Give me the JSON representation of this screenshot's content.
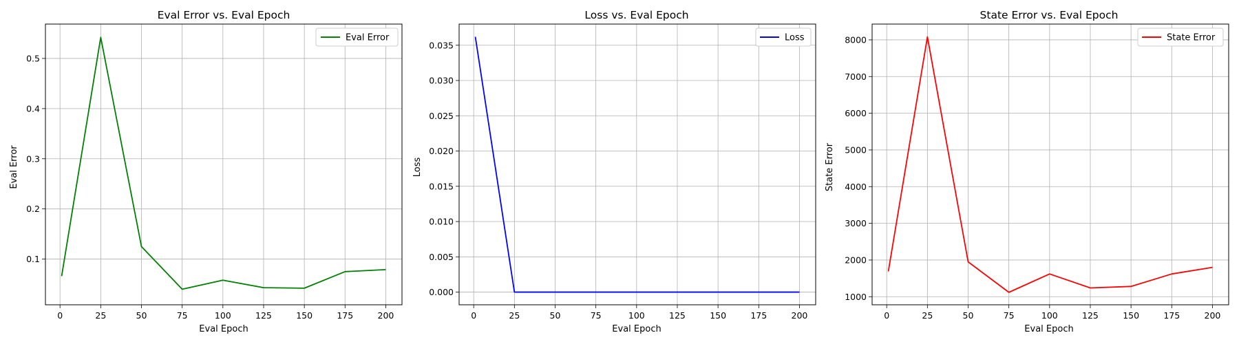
{
  "chart_data": [
    {
      "type": "line",
      "title": "Eval Error vs. Eval Epoch",
      "xlabel": "Eval Epoch",
      "ylabel": "Eval Error",
      "xlim": [
        -8.95,
        209.95
      ],
      "ylim": [
        0.0089,
        0.5685
      ],
      "xticks": [
        "0",
        "25",
        "50",
        "75",
        "100",
        "125",
        "150",
        "175",
        "200"
      ],
      "yticks": [
        "0.1",
        "0.2",
        "0.3",
        "0.4",
        "0.5"
      ],
      "grid": true,
      "legend": "top-right",
      "color": "#008000",
      "series": [
        {
          "name": "Eval Error",
          "x": [
            1,
            25,
            50,
            75,
            100,
            125,
            150,
            175,
            200
          ],
          "y": [
            0.066,
            0.542,
            0.125,
            0.04,
            0.058,
            0.043,
            0.042,
            0.075,
            0.079
          ]
        }
      ]
    },
    {
      "type": "line",
      "title": "Loss vs. Eval Epoch",
      "xlabel": "Eval Epoch",
      "ylabel": "Loss",
      "xlim": [
        -8.95,
        209.95
      ],
      "ylim": [
        -0.0018,
        0.038
      ],
      "xticks": [
        "0",
        "25",
        "50",
        "75",
        "100",
        "125",
        "150",
        "175",
        "200"
      ],
      "yticks": [
        "0.000",
        "0.005",
        "0.010",
        "0.015",
        "0.020",
        "0.025",
        "0.030",
        "0.035"
      ],
      "grid": true,
      "legend": "top-right",
      "color": "#0000ff",
      "series": [
        {
          "name": "Loss",
          "x": [
            1,
            25,
            50,
            75,
            100,
            125,
            150,
            175,
            200
          ],
          "y": [
            0.0362,
            0.0,
            0.0,
            0.0,
            0.0,
            0.0,
            0.0,
            0.0,
            0.0
          ]
        }
      ]
    },
    {
      "type": "line",
      "title": "State Error vs. Eval Epoch",
      "xlabel": "Eval Epoch",
      "ylabel": "State Error",
      "xlim": [
        -8.95,
        209.95
      ],
      "ylim": [
        780,
        8430
      ],
      "xticks": [
        "0",
        "25",
        "50",
        "75",
        "100",
        "125",
        "150",
        "175",
        "200"
      ],
      "yticks": [
        "1000",
        "2000",
        "3000",
        "4000",
        "5000",
        "6000",
        "7000",
        "8000"
      ],
      "grid": true,
      "legend": "top-right",
      "color": "#ff0000",
      "series": [
        {
          "name": "State Error",
          "x": [
            1,
            25,
            50,
            75,
            100,
            125,
            150,
            175,
            200
          ],
          "y": [
            1690,
            8080,
            1950,
            1120,
            1620,
            1240,
            1280,
            1620,
            1800
          ]
        }
      ]
    }
  ]
}
